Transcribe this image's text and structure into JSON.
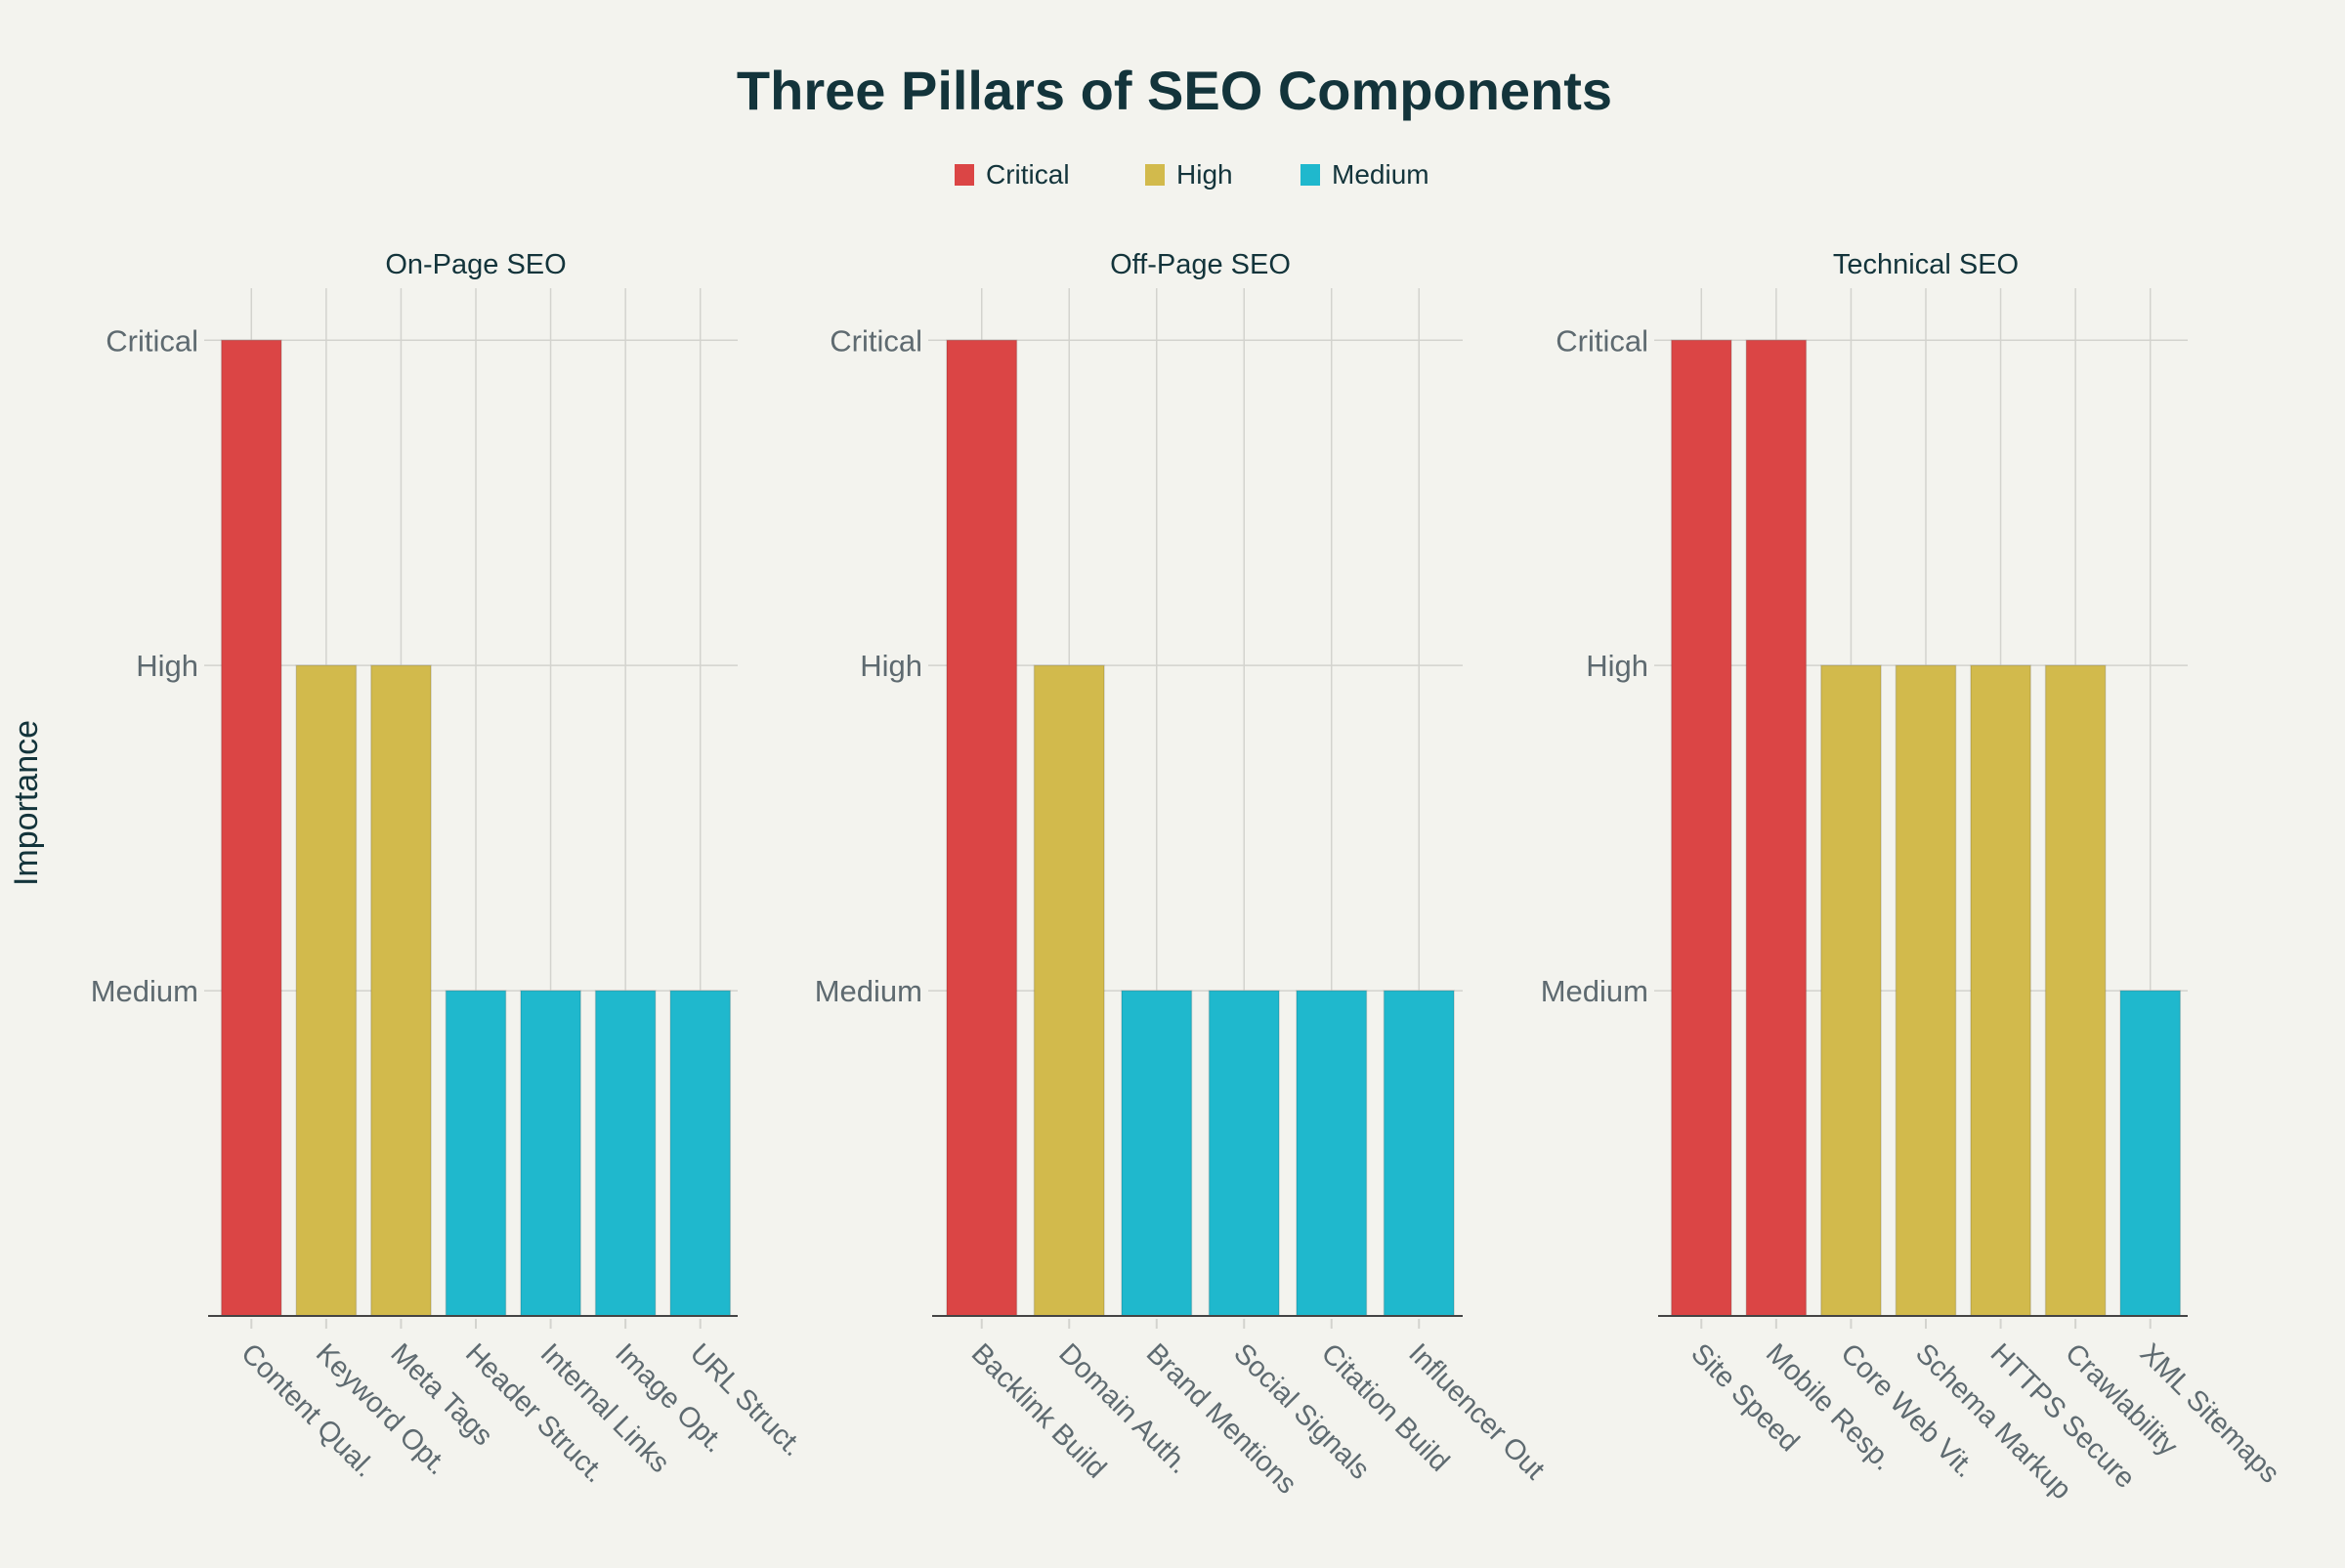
{
  "chart_data": {
    "type": "bar",
    "title": "Three Pillars of SEO Components",
    "ylabel": "Importance",
    "y_levels": {
      "Medium": 1,
      "High": 2,
      "Critical": 3
    },
    "ytick_labels": [
      "Medium",
      "High",
      "Critical"
    ],
    "ylim": [
      0,
      3.16
    ],
    "grid": true,
    "legend": {
      "placement": "top-center",
      "entries": [
        {
          "name": "Critical",
          "color": "#DB4545"
        },
        {
          "name": "High",
          "color": "#D2BA4C"
        },
        {
          "name": "Medium",
          "color": "#1FB8CD"
        }
      ]
    },
    "panels": [
      {
        "title": "On-Page SEO",
        "categories": [
          "Content Qual.",
          "Keyword Opt.",
          "Meta Tags",
          "Header Struct.",
          "Internal Links",
          "Image Opt.",
          "URL Struct."
        ],
        "values": [
          "Critical",
          "High",
          "High",
          "Medium",
          "Medium",
          "Medium",
          "Medium"
        ]
      },
      {
        "title": "Off-Page SEO",
        "categories": [
          "Backlink Build",
          "Domain Auth.",
          "Brand Mentions",
          "Social Signals",
          "Citation Build",
          "Influencer Out"
        ],
        "values": [
          "Critical",
          "High",
          "Medium",
          "Medium",
          "Medium",
          "Medium"
        ]
      },
      {
        "title": "Technical SEO",
        "categories": [
          "Site Speed",
          "Mobile Resp.",
          "Core Web Vit.",
          "Schema Markup",
          "HTTPS Secure",
          "Crawlability",
          "XML Sitemaps"
        ],
        "values": [
          "Critical",
          "Critical",
          "High",
          "High",
          "High",
          "High",
          "Medium"
        ]
      }
    ],
    "colors": {
      "background": "#F3F3EE",
      "title": "#13343B",
      "tick": "#5E6A70",
      "grid": "#D3D3CE"
    }
  }
}
